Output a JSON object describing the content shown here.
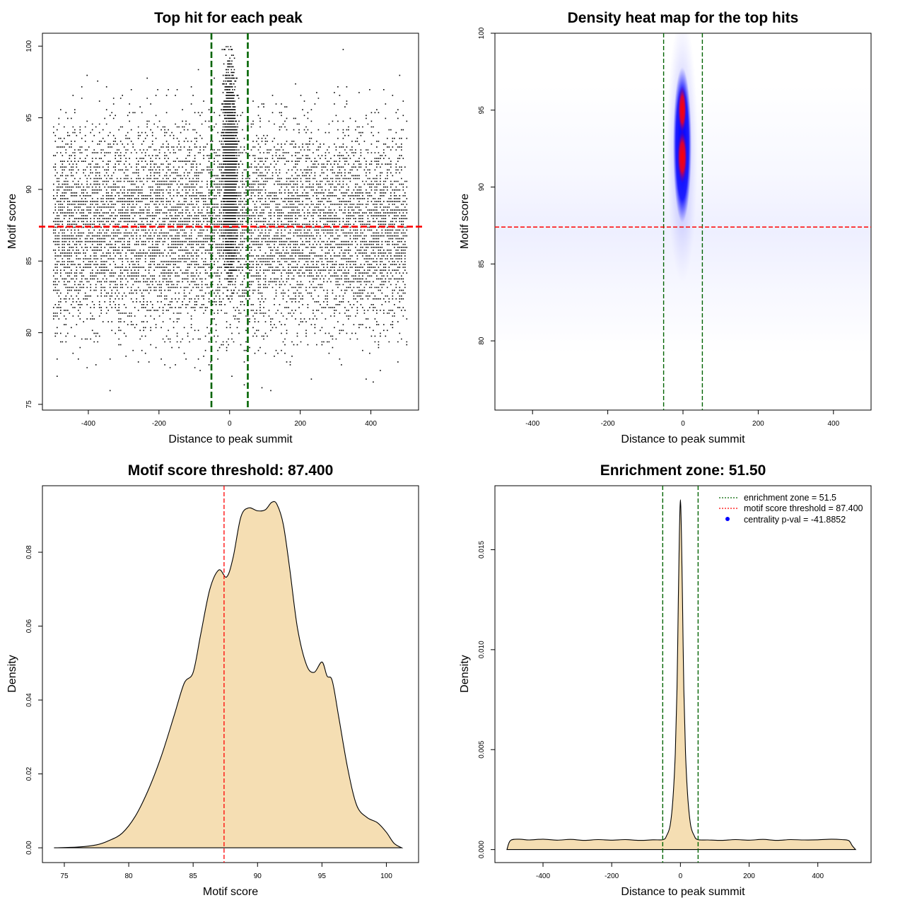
{
  "figure": {
    "panels": [
      {
        "title": "Top hit for each peak",
        "xlabel": "Distance to peak summit",
        "ylabel": "Motif score"
      },
      {
        "title": "Density heat map for the top hits",
        "xlabel": "Distance to peak summit",
        "ylabel": "Motif score"
      },
      {
        "title": "Motif score threshold: 87.400",
        "xlabel": "Motif score",
        "ylabel": "Density"
      },
      {
        "title": "Enrichment zone: 51.50",
        "xlabel": "Distance to peak summit",
        "ylabel": "Density"
      }
    ],
    "legend": {
      "items": [
        {
          "label": "enrichment zone = 51.5",
          "color": "#006400",
          "style": "dotted line"
        },
        {
          "label": "motif score threshold = 87.400",
          "color": "#ff0000",
          "style": "dotted line"
        },
        {
          "label": "centrality p-val = -41.8852",
          "color": "#0000ff",
          "style": "filled point"
        }
      ]
    }
  },
  "chart_data": [
    {
      "type": "scatter",
      "title": "Top hit for each peak",
      "xlabel": "Distance to peak summit",
      "ylabel": "Motif score",
      "xlim": [
        -530,
        535
      ],
      "ylim": [
        74.6,
        100.9
      ],
      "xticks": [
        "-400",
        "-200",
        "0",
        "200",
        "400"
      ],
      "yticks": [
        "75",
        "80",
        "85",
        "90",
        "95",
        "100"
      ],
      "background_points": {
        "x_range": [
          -500,
          500
        ],
        "y_range": [
          75.5,
          100
        ],
        "approx_count": 9000,
        "density_center_y": 87.5
      },
      "central_points": {
        "x_range": [
          -25,
          25
        ],
        "y_range": [
          79,
          100
        ],
        "approx_count": 3500,
        "density_center_y": 91.5
      },
      "hlines": [
        {
          "y": 87.4,
          "color": "#ff0000",
          "style": "dashed"
        }
      ],
      "vlines": [
        {
          "x": -51.5,
          "color": "#006400",
          "style": "dashed"
        },
        {
          "x": 51.5,
          "color": "#006400",
          "style": "dashed"
        }
      ],
      "grid": false
    },
    {
      "type": "heatmap",
      "title": "Density heat map for the top hits",
      "xlabel": "Distance to peak summit",
      "ylabel": "Motif score",
      "xlim": [
        -500,
        500
      ],
      "ylim": [
        75.5,
        100
      ],
      "xticks": [
        "-400",
        "-200",
        "0",
        "200",
        "400"
      ],
      "yticks": [
        "80",
        "85",
        "90",
        "95",
        "100"
      ],
      "hotspot": {
        "x": 0,
        "y_center": 93,
        "y_range": [
          86,
          99
        ],
        "colors": [
          "#ffffff",
          "#0000ff",
          "#ff0000"
        ]
      },
      "hlines": [
        {
          "y": 87.4,
          "color": "#ff0000",
          "style": "dashed"
        }
      ],
      "vlines": [
        {
          "x": -51.5,
          "color": "#006400",
          "style": "dashed"
        },
        {
          "x": 51.5,
          "color": "#006400",
          "style": "dashed"
        }
      ],
      "grid": false
    },
    {
      "type": "area",
      "title": "Motif score threshold: 87.400",
      "xlabel": "Motif score",
      "ylabel": "Density",
      "fill": "#f5deb3",
      "xlim": [
        73.3,
        102.5
      ],
      "ylim": [
        -0.004,
        0.098
      ],
      "xticks": [
        "75",
        "80",
        "85",
        "90",
        "95",
        "100"
      ],
      "yticks": [
        "0.00",
        "0.02",
        "0.04",
        "0.06",
        "0.08"
      ],
      "x": [
        74.2,
        76,
        77.5,
        78.5,
        79.5,
        80.5,
        81.5,
        82.5,
        83.5,
        84.3,
        85,
        85.6,
        86.3,
        87,
        87.6,
        88.1,
        88.7,
        89.3,
        90,
        90.6,
        91.1,
        91.5,
        92,
        92.5,
        93.1,
        93.8,
        94.4,
        95,
        95.4,
        95.8,
        96.3,
        97,
        97.7,
        98.5,
        99.3,
        100,
        100.6,
        101.2
      ],
      "y": [
        0,
        0.0002,
        0.0008,
        0.002,
        0.004,
        0.0085,
        0.0155,
        0.0245,
        0.0355,
        0.0445,
        0.0475,
        0.058,
        0.07,
        0.0752,
        0.0733,
        0.0785,
        0.0895,
        0.092,
        0.0912,
        0.0915,
        0.0935,
        0.093,
        0.0875,
        0.0755,
        0.0595,
        0.0495,
        0.0475,
        0.0503,
        0.0465,
        0.0452,
        0.0355,
        0.0215,
        0.0115,
        0.0082,
        0.0068,
        0.0042,
        0.0012,
        0
      ],
      "vlines": [
        {
          "x": 87.4,
          "color": "#ff0000",
          "style": "dashed"
        }
      ],
      "grid": false
    },
    {
      "type": "area",
      "title": "Enrichment zone: 51.50",
      "xlabel": "Distance to peak summit",
      "ylabel": "Density",
      "fill": "#f5deb3",
      "xlim": [
        -540,
        555
      ],
      "ylim": [
        -0.00065,
        0.0182
      ],
      "xticks": [
        "-400",
        "-200",
        "0",
        "200",
        "400"
      ],
      "yticks": [
        "0.000",
        "0.005",
        "0.010",
        "0.015"
      ],
      "x": [
        -505,
        -495,
        -470,
        -440,
        -400,
        -360,
        -320,
        -280,
        -240,
        -200,
        -160,
        -120,
        -80,
        -50,
        -40,
        -30,
        -22,
        -15,
        -10,
        -6,
        -3,
        0,
        3,
        6,
        10,
        15,
        22,
        30,
        40,
        50,
        80,
        120,
        160,
        200,
        240,
        280,
        320,
        360,
        400,
        440,
        470,
        490,
        500,
        510
      ],
      "y": [
        0,
        0.00045,
        0.00052,
        0.00048,
        0.00052,
        0.00047,
        0.00051,
        0.00046,
        0.0005,
        0.00047,
        0.0005,
        0.00046,
        0.00049,
        0.0005,
        0.0007,
        0.0012,
        0.0025,
        0.0048,
        0.008,
        0.0125,
        0.0158,
        0.0175,
        0.0158,
        0.0125,
        0.008,
        0.0048,
        0.0025,
        0.0012,
        0.0007,
        0.0005,
        0.00048,
        0.00046,
        0.0005,
        0.00047,
        0.00051,
        0.00046,
        0.0005,
        0.00048,
        0.00049,
        0.00052,
        0.0005,
        0.00045,
        0.0002,
        0
      ],
      "vlines": [
        {
          "x": -51.5,
          "color": "#006400",
          "style": "dashed"
        },
        {
          "x": 51.5,
          "color": "#006400",
          "style": "dashed"
        }
      ],
      "legend_position": "top-right",
      "grid": false
    }
  ]
}
